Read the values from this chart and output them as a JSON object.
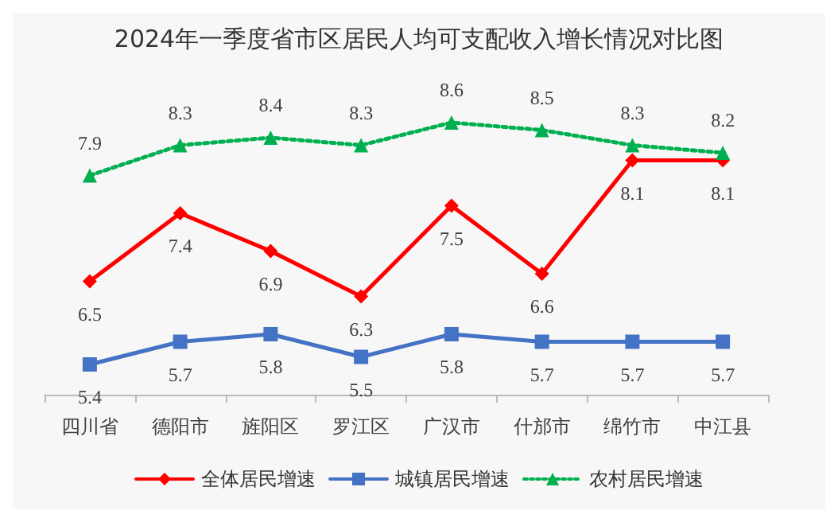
{
  "chart_data": {
    "type": "line",
    "title": "2024年一季度省市区居民人均可支配收入增长情况对比图",
    "categories": [
      "四川省",
      "德阳市",
      "旌阳区",
      "罗江区",
      "广汉市",
      "什邡市",
      "绵竹市",
      "中江县"
    ],
    "series": [
      {
        "name": "全体居民增速",
        "color": "#ff0000",
        "marker": "diamond",
        "line_style": "solid",
        "values": [
          6.5,
          7.4,
          6.9,
          6.3,
          7.5,
          6.6,
          8.1,
          8.1
        ]
      },
      {
        "name": "城镇居民增速",
        "color": "#4472c4",
        "marker": "square",
        "line_style": "solid",
        "values": [
          5.4,
          5.7,
          5.8,
          5.5,
          5.8,
          5.7,
          5.7,
          5.7
        ]
      },
      {
        "name": "农村居民增速",
        "color": "#00b050",
        "marker": "triangle",
        "line_style": "dotted",
        "values": [
          7.9,
          8.3,
          8.4,
          8.3,
          8.6,
          8.5,
          8.3,
          8.2
        ]
      }
    ],
    "data_labels": true,
    "grid": false,
    "legend": "bottom"
  }
}
